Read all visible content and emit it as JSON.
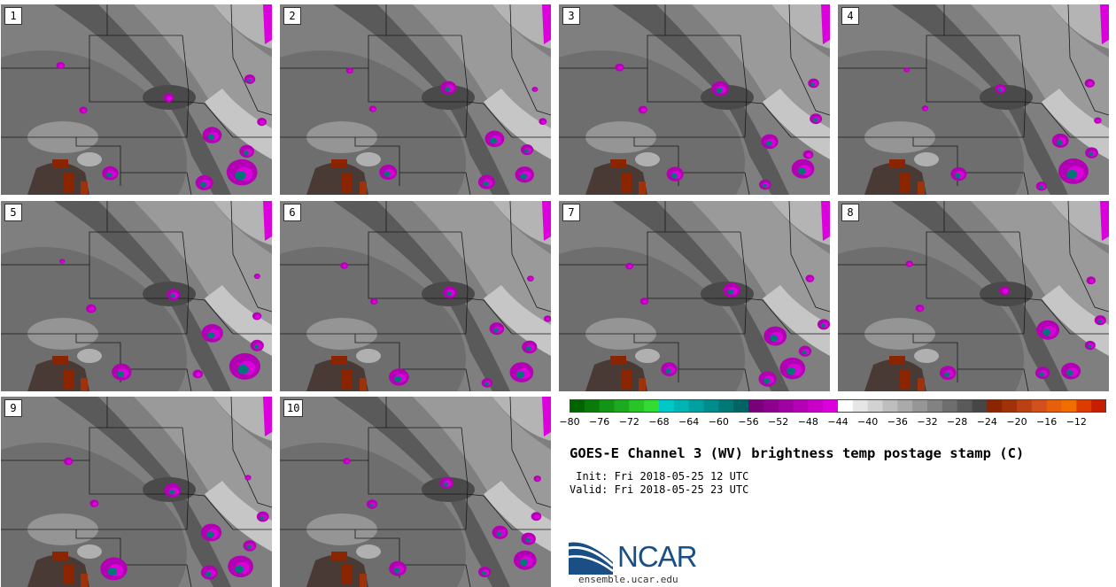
{
  "panels": [
    {
      "label": "1"
    },
    {
      "label": "2"
    },
    {
      "label": "3"
    },
    {
      "label": "4"
    },
    {
      "label": "5"
    },
    {
      "label": "6"
    },
    {
      "label": "7"
    },
    {
      "label": "8"
    },
    {
      "label": "9"
    },
    {
      "label": "10"
    }
  ],
  "colorbar": {
    "bins": [
      -80,
      -78,
      -76,
      -74,
      -72,
      -70,
      -68,
      -66,
      -64,
      -62,
      -60,
      -58,
      -56,
      -54,
      -52,
      -50,
      -48,
      -46,
      -44,
      -42,
      -40,
      -38,
      -36,
      -34,
      -32,
      -30,
      -28,
      -26,
      -24,
      -22,
      -20,
      -18,
      -16,
      -14,
      -12,
      -10
    ],
    "colors": [
      "#006400",
      "#0a7a0a",
      "#149414",
      "#1eaa1e",
      "#28c428",
      "#32dc32",
      "#00c8c8",
      "#00b4b4",
      "#00a0a0",
      "#008c8c",
      "#007878",
      "#006464",
      "#780078",
      "#8c008c",
      "#a000a0",
      "#b400b4",
      "#c800c8",
      "#dc00dc",
      "#ffffff",
      "#e6e6e6",
      "#d2d2d2",
      "#bebebe",
      "#aaaaaa",
      "#969696",
      "#828282",
      "#6e6e6e",
      "#5a5a5a",
      "#464646",
      "#8b2500",
      "#a0320a",
      "#b94114",
      "#d2501e",
      "#e65f0a",
      "#f06e00",
      "#dc3c00",
      "#c81e00"
    ],
    "tick_labels": [
      "−80",
      "−76",
      "−72",
      "−68",
      "−64",
      "−60",
      "−56",
      "−52",
      "−48",
      "−44",
      "−40",
      "−36",
      "−32",
      "−28",
      "−24",
      "−20",
      "−16",
      "−12"
    ]
  },
  "title": "GOES-E Channel 3 (WV) brightness temp postage stamp (C)",
  "init_line": " Init: Fri 2018-05-25 12 UTC",
  "valid_line": "Valid: Fri 2018-05-25 23 UTC",
  "logo": {
    "text": "NCAR",
    "brand_color": "#1a4f86"
  },
  "url": "ensemble.ucar.edu"
}
